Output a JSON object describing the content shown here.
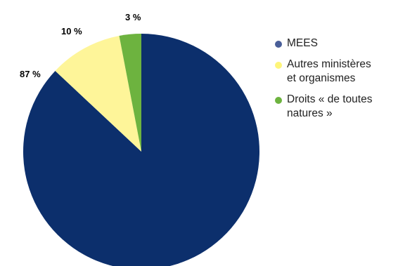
{
  "chart_data": {
    "type": "pie",
    "slices": [
      {
        "name": "MEES",
        "value": 87,
        "label": "87 %",
        "color": "#0c2f6c",
        "legend_color": "#4a5f99"
      },
      {
        "name": "Autres ministères et organismes",
        "value": 10,
        "label": "10 %",
        "color": "#fef599",
        "legend_color": "#fef57a"
      },
      {
        "name": "Droits « de toutes natures »",
        "value": 3,
        "label": "3 %",
        "color": "#6db33f",
        "legend_color": "#6db33f"
      }
    ],
    "legend_placement": "right"
  },
  "legend": {
    "items": [
      {
        "lines": [
          "MEES"
        ]
      },
      {
        "lines": [
          "Autres ministères",
          "et organismes"
        ]
      },
      {
        "lines": [
          "Droits « de toutes",
          "natures »"
        ]
      }
    ]
  }
}
